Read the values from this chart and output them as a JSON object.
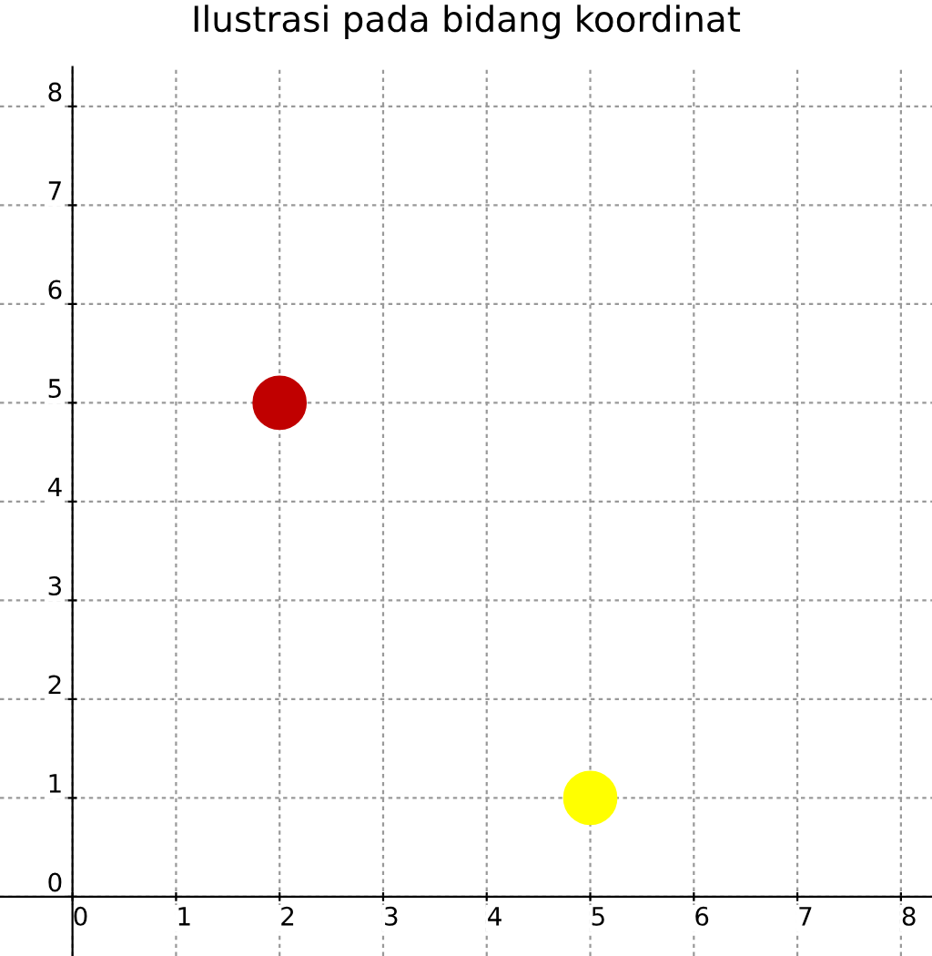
{
  "chart_data": {
    "type": "scatter",
    "title": "Ilustrasi pada bidang koordinat",
    "series": [
      {
        "x": [
          2,
          5
        ],
        "values": [
          5,
          1
        ],
        "colors": [
          "#c00000",
          "#ffff00"
        ]
      }
    ],
    "xlim": [
      -0.7,
      8.3
    ],
    "ylim": [
      -0.6,
      8.4
    ],
    "xticks": [
      0,
      1,
      2,
      3,
      4,
      5,
      6,
      7,
      8
    ],
    "yticks": [
      0,
      1,
      2,
      3,
      4,
      5,
      6,
      7,
      8
    ],
    "grid": true,
    "marker": "circle",
    "legend": false
  }
}
